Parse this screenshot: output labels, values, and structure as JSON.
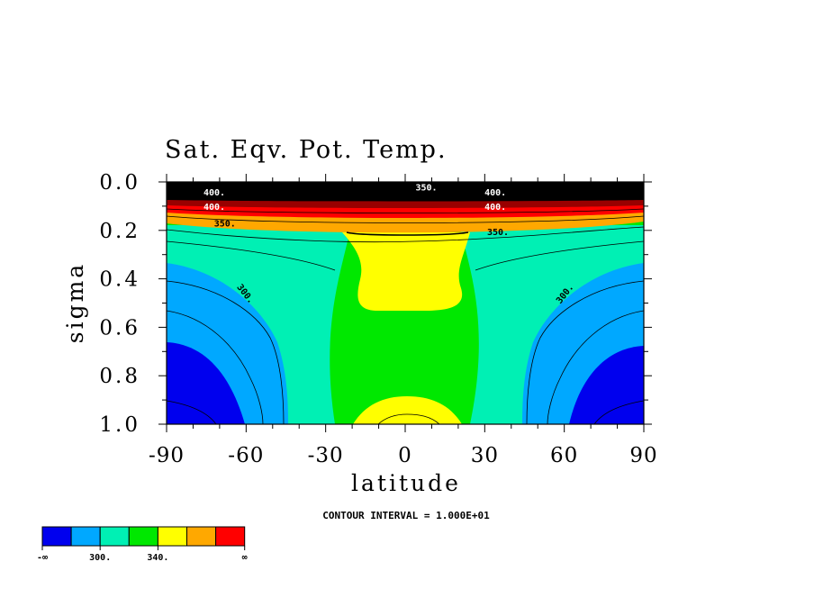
{
  "chart_data": {
    "type": "heatmap",
    "title": "Sat. Eqv. Pot. Temp.",
    "xlabel": "latitude",
    "ylabel": "sigma",
    "xlim": [
      -90,
      90
    ],
    "ylim": [
      1.0,
      0.0
    ],
    "x_ticks": [
      "-90",
      "-60",
      "-30",
      "0",
      "30",
      "60",
      "90"
    ],
    "y_ticks": [
      "0.0",
      "0.2",
      "0.4",
      "0.6",
      "0.8",
      "1.0"
    ],
    "contour_interval_label": "CONTOUR INTERVAL = 1.000E+01",
    "contour_labels": [
      {
        "text": "350.",
        "lat": -68,
        "sigma": 0.17
      },
      {
        "text": "350.",
        "lat": 35,
        "sigma": 0.205
      },
      {
        "text": "300.",
        "lat": -60,
        "sigma": 0.46
      },
      {
        "text": "300.",
        "lat": 60,
        "sigma": 0.46
      },
      {
        "text": "400.",
        "lat": -72,
        "sigma": 0.04
      },
      {
        "text": "400.",
        "lat": -72,
        "sigma": 0.1
      },
      {
        "text": "400.",
        "lat": 34,
        "sigma": 0.04
      },
      {
        "text": "400.",
        "lat": 34,
        "sigma": 0.1
      },
      {
        "text": "350.",
        "lat": 8,
        "sigma": 0.02
      }
    ],
    "colorbar": {
      "colors": [
        "#0000ee",
        "#00a8ff",
        "#00f0b4",
        "#00e800",
        "#ffff00",
        "#ffa800",
        "#ff0000"
      ],
      "labels": [
        "-∞",
        "300.",
        "340.",
        "∞"
      ]
    },
    "field_colors": {
      "dark_blue": "#0000ee",
      "light_blue": "#00a8ff",
      "teal": "#00f0b4",
      "green": "#00e800",
      "yellow": "#ffff00",
      "orange": "#ffa800",
      "red": "#ff0000",
      "dark_red": "#990000",
      "black": "#000000"
    }
  }
}
